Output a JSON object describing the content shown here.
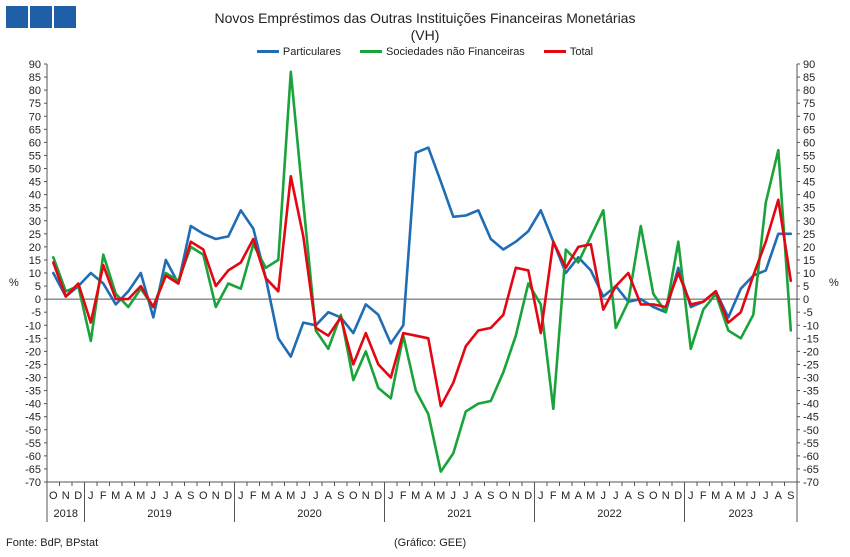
{
  "header": {
    "logo_color": "#1f5fa8"
  },
  "title_line1": "Novos Empréstimos das Outras Instituições Financeiras Monetárias",
  "title_line2": "(VH)",
  "source": "Fonte: BdP, BPstat",
  "credit": "(Gráfico: GEE)",
  "unit_label": "%",
  "chart_data": {
    "type": "line",
    "title": "Novos Empréstimos das Outras Instituições Financeiras Monetárias",
    "subtitle": "(VH)",
    "ylabel": "%",
    "ylim": [
      -70,
      90
    ],
    "ytick_step": 5,
    "grid": false,
    "legend_position": "top-center",
    "x_month_labels": [
      "O",
      "N",
      "D",
      "J",
      "F",
      "M",
      "A",
      "M",
      "J",
      "J",
      "A",
      "S",
      "O",
      "N",
      "D",
      "J",
      "F",
      "M",
      "A",
      "M",
      "J",
      "J",
      "A",
      "S",
      "O",
      "N",
      "D",
      "J",
      "F",
      "M",
      "A",
      "M",
      "J",
      "J",
      "A",
      "S",
      "O",
      "N",
      "D",
      "J",
      "F",
      "M",
      "A",
      "M",
      "J",
      "J",
      "A",
      "S",
      "O",
      "N",
      "D",
      "J",
      "F",
      "M",
      "A",
      "M",
      "J",
      "J",
      "A",
      "S"
    ],
    "year_groups": [
      {
        "label": "2018",
        "start": 0,
        "count": 3
      },
      {
        "label": "2019",
        "start": 3,
        "count": 12
      },
      {
        "label": "2020",
        "start": 15,
        "count": 12
      },
      {
        "label": "2021",
        "start": 27,
        "count": 12
      },
      {
        "label": "2022",
        "start": 39,
        "count": 12
      },
      {
        "label": "2023",
        "start": 51,
        "count": 9
      }
    ],
    "series": [
      {
        "name": "Particulares",
        "color": "#1f6db5",
        "values": [
          10,
          1,
          5,
          10,
          6,
          -2,
          3,
          10,
          -7,
          15,
          6,
          28,
          25,
          23,
          24,
          34,
          27,
          8,
          -15,
          -22,
          -9,
          -10,
          -5,
          -7,
          -13,
          -2,
          -6,
          -17,
          -10,
          56,
          58,
          45,
          31.5,
          32,
          34,
          23,
          19,
          22,
          26,
          34,
          22,
          10,
          16,
          11,
          1,
          5,
          -1,
          0,
          -3,
          -5,
          12,
          -3,
          -1,
          3,
          -7,
          4,
          9,
          11,
          25,
          25
        ]
      },
      {
        "name": "Sociedades não Financeiras",
        "color": "#1aa33a",
        "values": [
          16,
          3,
          5,
          -16,
          17,
          2,
          -3,
          4,
          -3,
          10,
          7,
          20,
          17,
          -3,
          6,
          4,
          21,
          12,
          15,
          87,
          37,
          -12,
          -19,
          -6,
          -31,
          -20,
          -34,
          -38,
          -14,
          -35,
          -44,
          -66,
          -59,
          -43,
          -40,
          -39,
          -28,
          -14,
          6,
          -2,
          -42,
          19,
          14,
          24,
          34,
          -11,
          -1,
          28,
          2,
          -5,
          22,
          -19,
          -4,
          2,
          -12,
          -15,
          -6,
          37,
          57,
          -12
        ]
      },
      {
        "name": "Total",
        "color": "#e30613",
        "values": [
          14,
          1,
          6,
          -9,
          13,
          0,
          0,
          5,
          -3,
          9,
          6,
          22,
          19,
          5,
          11,
          14,
          23,
          8,
          3,
          47,
          24,
          -11,
          -14,
          -7,
          -25,
          -13,
          -25,
          -30,
          -13,
          -14,
          -15,
          -41,
          -32,
          -18,
          -12,
          -11,
          -6,
          12,
          11,
          -13,
          22,
          12,
          20,
          21,
          -4,
          5,
          10,
          -2,
          -2,
          -3,
          10,
          -2,
          -1,
          3,
          -9,
          -5,
          9,
          22,
          38,
          7
        ]
      }
    ]
  }
}
